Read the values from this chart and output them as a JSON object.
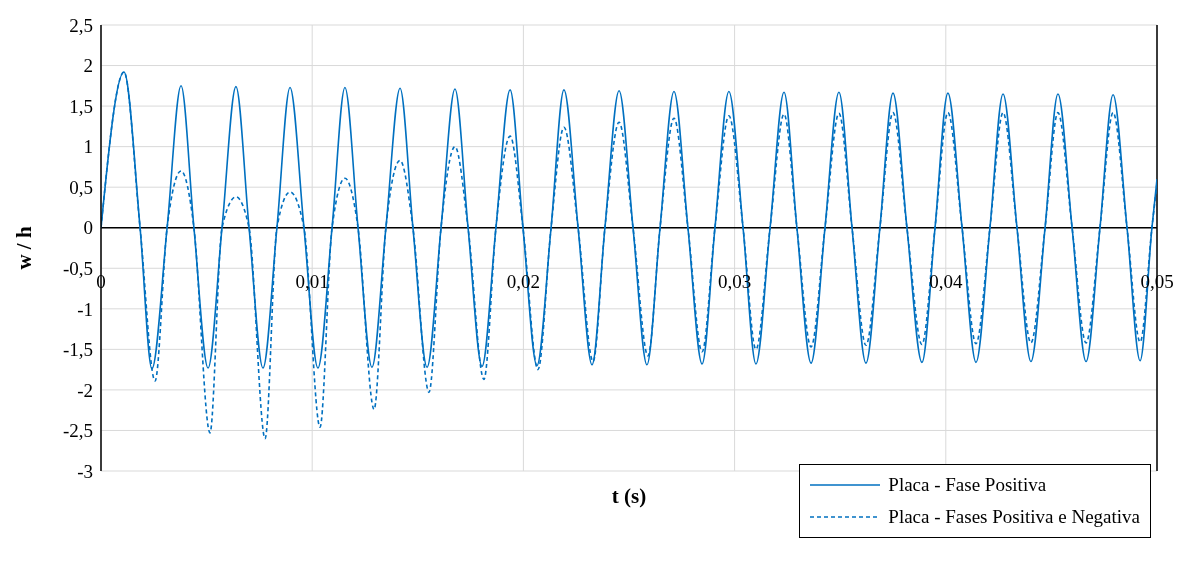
{
  "chart_data": {
    "type": "line",
    "xlabel": "t (s)",
    "ylabel": "w / h",
    "xlim": [
      0,
      0.05
    ],
    "xticks": [
      0,
      {
        "value": 0.01,
        "label": "0,01"
      },
      {
        "value": 0.02,
        "label": "0,02"
      },
      {
        "value": 0.03,
        "label": "0,03"
      },
      {
        "value": 0.04,
        "label": "0,04"
      },
      {
        "value": 0.05,
        "label": "0,05"
      }
    ],
    "ylim": [
      -3,
      2.5
    ],
    "yticks": [
      -3,
      {
        "value": -2.5,
        "label": "-2,5"
      },
      -2,
      {
        "value": -1.5,
        "label": "-1,5"
      },
      -1,
      {
        "value": -0.5,
        "label": "-0,5"
      },
      0,
      {
        "value": 0.5,
        "label": "0,5"
      },
      1,
      {
        "value": 1.5,
        "label": "1,5"
      },
      2,
      {
        "value": 2.5,
        "label": "2,5"
      }
    ],
    "grid": true,
    "legend": "bottom right",
    "marker": "none",
    "series": [
      {
        "name": "Placa - Fase Positiva",
        "color": "#0070c0",
        "line_style": "solid",
        "x": [
          0,
          0.00109,
          0.00185,
          0.00241,
          0.00313,
          0.00379,
          0.0044,
          0.00507,
          0.00573,
          0.00639,
          0.00701,
          0.00767,
          0.00833,
          0.00895,
          0.00961,
          0.01027,
          0.01094,
          0.01155,
          0.01217,
          0.01283,
          0.01349,
          0.01416,
          0.01477,
          0.01544,
          0.0161,
          0.01676,
          0.01738,
          0.01804,
          0.0187,
          0.01937,
          0.01998,
          0.02064,
          0.02131,
          0.02192,
          0.02259,
          0.02325,
          0.02386,
          0.02453,
          0.02519,
          0.02585,
          0.02647,
          0.02713,
          0.02779,
          0.02846,
          0.02907,
          0.02973,
          0.0304,
          0.03101,
          0.03168,
          0.03234,
          0.03295,
          0.03362,
          0.03428,
          0.03494,
          0.03556,
          0.03622,
          0.03688,
          0.0375,
          0.03816,
          0.03887,
          0.03949,
          0.0401,
          0.04077,
          0.04143,
          0.04209,
          0.04271,
          0.04337,
          0.04403,
          0.0447,
          0.04531,
          0.04598,
          0.04664,
          0.0473,
          0.04792,
          0.04858,
          0.0492,
          0.04976,
          0.05
        ],
        "values": [
          0,
          1.92,
          0,
          -1.74,
          0,
          1.75,
          0,
          -1.73,
          0,
          1.74,
          0,
          -1.73,
          0,
          1.73,
          0,
          -1.73,
          0,
          1.73,
          0,
          -1.72,
          0,
          1.72,
          0,
          -1.72,
          0,
          1.71,
          0,
          -1.71,
          0,
          1.7,
          0,
          -1.7,
          0,
          1.7,
          0,
          -1.69,
          0,
          1.69,
          0,
          -1.69,
          0,
          1.68,
          0,
          -1.68,
          0,
          1.68,
          0,
          -1.68,
          0,
          1.67,
          0,
          -1.67,
          0,
          1.67,
          0,
          -1.67,
          0,
          1.66,
          0,
          -1.66,
          0,
          1.66,
          0,
          -1.66,
          0,
          1.65,
          0,
          -1.65,
          0,
          1.65,
          0,
          -1.65,
          0,
          1.64,
          0,
          -1.64,
          0,
          0.6
        ]
      },
      {
        "name": "Placa - Fases Positiva e Negativa",
        "color": "#0070c0",
        "line_style": "dashed",
        "x": [
          0,
          0.00109,
          0.00185,
          0.00256,
          0.00313,
          0.00379,
          0.0044,
          0.00516,
          0.00573,
          0.00639,
          0.00701,
          0.00777,
          0.00833,
          0.00895,
          0.00961,
          0.01037,
          0.01094,
          0.01155,
          0.01217,
          0.01293,
          0.01349,
          0.01416,
          0.01477,
          0.01553,
          0.0161,
          0.01676,
          0.01738,
          0.01813,
          0.0187,
          0.01937,
          0.01998,
          0.02069,
          0.02131,
          0.02192,
          0.02259,
          0.0233,
          0.02386,
          0.02453,
          0.02519,
          0.0259,
          0.02647,
          0.02713,
          0.02779,
          0.02846,
          0.02907,
          0.02973,
          0.0304,
          0.03101,
          0.03168,
          0.03234,
          0.03295,
          0.03362,
          0.03428,
          0.03494,
          0.03556,
          0.03622,
          0.03688,
          0.0375,
          0.03816,
          0.03887,
          0.03949,
          0.0401,
          0.04077,
          0.04143,
          0.04209,
          0.04271,
          0.04337,
          0.04403,
          0.0447,
          0.04531,
          0.04598,
          0.04664,
          0.0473,
          0.04792,
          0.04858,
          0.0492,
          0.04976,
          0.05
        ],
        "values": [
          0,
          1.92,
          0,
          -1.89,
          0,
          0.7,
          0,
          -2.53,
          0,
          0.38,
          0,
          -2.6,
          0,
          0.44,
          0,
          -2.46,
          0,
          0.61,
          0,
          -2.24,
          0,
          0.83,
          0,
          -2.03,
          0,
          1.0,
          0,
          -1.87,
          0,
          1.13,
          0,
          -1.75,
          0,
          1.24,
          0,
          -1.65,
          0,
          1.3,
          0,
          -1.58,
          0,
          1.35,
          0,
          -1.53,
          0,
          1.38,
          0,
          -1.5,
          0,
          1.4,
          0,
          -1.47,
          0,
          1.41,
          0,
          -1.45,
          0,
          1.42,
          0,
          -1.44,
          0,
          1.42,
          0,
          -1.43,
          0,
          1.42,
          0,
          -1.42,
          0,
          1.42,
          0,
          -1.42,
          0,
          1.42,
          0,
          -1.41,
          0,
          0.55
        ]
      }
    ]
  }
}
